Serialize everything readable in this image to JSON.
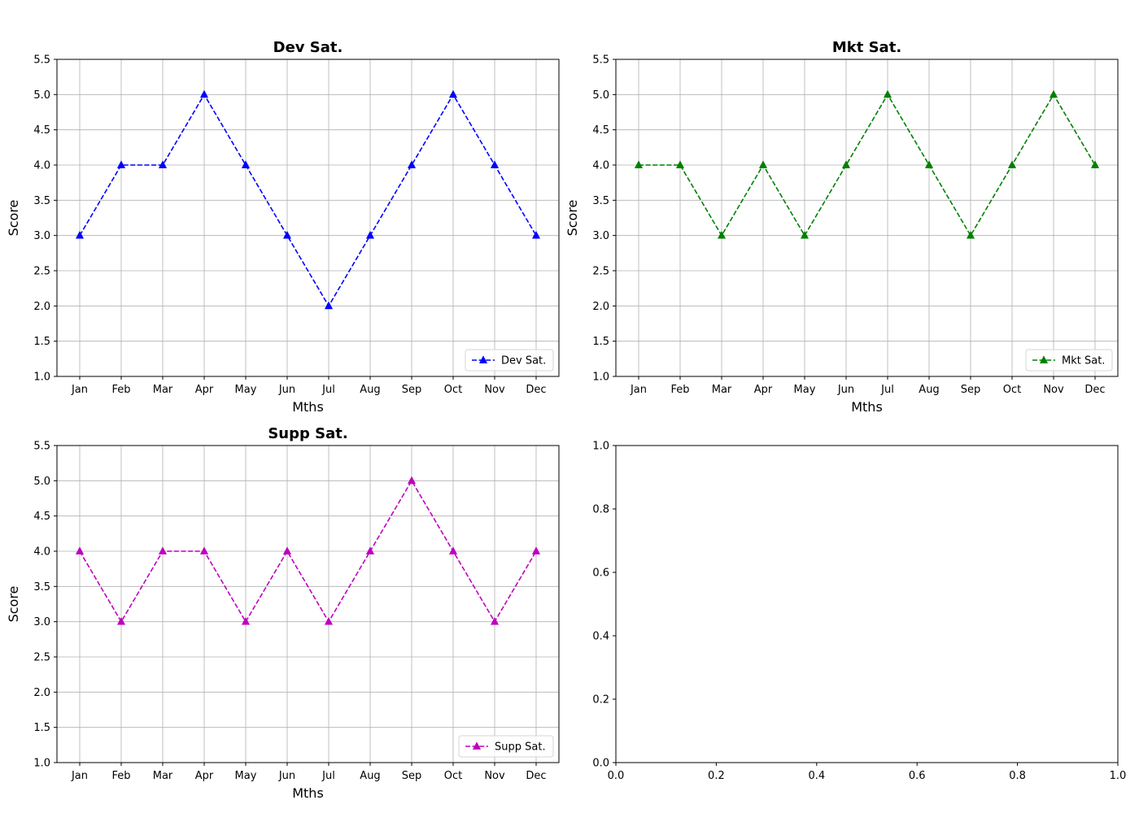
{
  "chart_data": [
    {
      "type": "line",
      "title": "Dev Sat.",
      "xlabel": "Mths",
      "ylabel": "Score",
      "categories": [
        "Jan",
        "Feb",
        "Mar",
        "Apr",
        "May",
        "Jun",
        "Jul",
        "Aug",
        "Sep",
        "Oct",
        "Nov",
        "Dec"
      ],
      "ylim": [
        1.0,
        5.5
      ],
      "yticks": [
        "1.0",
        "1.5",
        "2.0",
        "2.5",
        "3.0",
        "3.5",
        "4.0",
        "4.5",
        "5.0",
        "5.5"
      ],
      "grid": true,
      "legend_position": "lower-right",
      "series": [
        {
          "name": "Dev Sat.",
          "color": "#0000ff",
          "line_style": "dashed",
          "marker": "triangle-up",
          "values": [
            3,
            4,
            4,
            5,
            4,
            3,
            2,
            3,
            4,
            5,
            4,
            3
          ]
        }
      ]
    },
    {
      "type": "line",
      "title": "Mkt Sat.",
      "xlabel": "Mths",
      "ylabel": "Score",
      "categories": [
        "Jan",
        "Feb",
        "Mar",
        "Apr",
        "May",
        "Jun",
        "Jul",
        "Aug",
        "Sep",
        "Oct",
        "Nov",
        "Dec"
      ],
      "ylim": [
        1.0,
        5.5
      ],
      "yticks": [
        "1.0",
        "1.5",
        "2.0",
        "2.5",
        "3.0",
        "3.5",
        "4.0",
        "4.5",
        "5.0",
        "5.5"
      ],
      "grid": true,
      "legend_position": "lower-right",
      "series": [
        {
          "name": "Mkt Sat.",
          "color": "#008000",
          "line_style": "dashed",
          "marker": "triangle-up",
          "values": [
            4,
            4,
            3,
            4,
            3,
            4,
            5,
            4,
            3,
            4,
            5,
            4
          ]
        }
      ]
    },
    {
      "type": "line",
      "title": "Supp Sat.",
      "xlabel": "Mths",
      "ylabel": "Score",
      "categories": [
        "Jan",
        "Feb",
        "Mar",
        "Apr",
        "May",
        "Jun",
        "Jul",
        "Aug",
        "Sep",
        "Oct",
        "Nov",
        "Dec"
      ],
      "ylim": [
        1.0,
        5.5
      ],
      "yticks": [
        "1.0",
        "1.5",
        "2.0",
        "2.5",
        "3.0",
        "3.5",
        "4.0",
        "4.5",
        "5.0",
        "5.5"
      ],
      "grid": true,
      "legend_position": "lower-right",
      "series": [
        {
          "name": "Supp Sat.",
          "color": "#bf00bf",
          "line_style": "dashed",
          "marker": "triangle-up",
          "values": [
            4,
            3,
            4,
            4,
            3,
            4,
            3,
            4,
            5,
            4,
            3,
            4
          ]
        }
      ]
    },
    {
      "type": "line",
      "title": "",
      "xlabel": "",
      "ylabel": "",
      "xlim": [
        0.0,
        1.0
      ],
      "ylim": [
        0.0,
        1.0
      ],
      "xticks": [
        "0.0",
        "0.2",
        "0.4",
        "0.6",
        "0.8",
        "1.0"
      ],
      "yticks": [
        "0.0",
        "0.2",
        "0.4",
        "0.6",
        "0.8",
        "1.0"
      ],
      "grid": false,
      "series": []
    }
  ]
}
